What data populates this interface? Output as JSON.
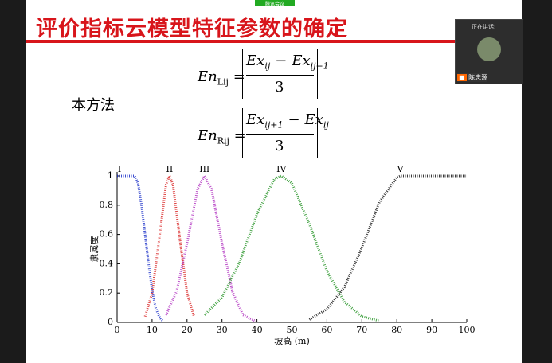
{
  "meeting": {
    "app_label": "腾讯会议",
    "speaking_label": "正在讲话:",
    "speaker": "陈忠源"
  },
  "slide": {
    "title": "评价指标云模型特征参数的确定",
    "method_label": "本方法",
    "formulas": [
      {
        "lhs": "En",
        "lhs_sub": "Lij",
        "num_a": "Ex",
        "num_a_sub": "ij",
        "op": "−",
        "num_b": "Ex",
        "num_b_sub": "ij−1",
        "den": "3"
      },
      {
        "lhs": "En",
        "lhs_sub": "Rij",
        "num_a": "Ex",
        "num_a_sub": "ij+1",
        "op": "−",
        "num_b": "Ex",
        "num_b_sub": "ij",
        "den": "3"
      }
    ]
  },
  "chart_data": {
    "type": "line",
    "xlabel": "坡高 (m)",
    "ylabel": "隶属度",
    "xlim": [
      0,
      100
    ],
    "xticks": [
      0,
      10,
      20,
      30,
      40,
      50,
      60,
      70,
      80,
      90,
      100
    ],
    "ylim": [
      0,
      1
    ],
    "yticks": [
      0,
      0.2,
      0.4,
      0.6,
      0.8,
      1
    ],
    "series": [
      {
        "name": "I",
        "color": "#1a2fc8",
        "x": [
          0,
          5,
          6,
          7,
          8,
          9,
          10,
          11,
          12,
          13
        ],
        "values": [
          1,
          1,
          0.95,
          0.8,
          0.6,
          0.4,
          0.22,
          0.1,
          0.04,
          0.01
        ]
      },
      {
        "name": "II",
        "color": "#d82020",
        "x": [
          8,
          10,
          12,
          14,
          15,
          16,
          18,
          20,
          22
        ],
        "values": [
          0.04,
          0.2,
          0.56,
          0.94,
          1,
          0.94,
          0.56,
          0.2,
          0.04
        ]
      },
      {
        "name": "III",
        "color": "#b030c0",
        "x": [
          14,
          17,
          20,
          23,
          25,
          27,
          30,
          33,
          36,
          40
        ],
        "values": [
          0.05,
          0.21,
          0.54,
          0.91,
          1,
          0.91,
          0.54,
          0.21,
          0.05,
          0.004
        ]
      },
      {
        "name": "IV",
        "color": "#209020",
        "x": [
          25,
          30,
          35,
          40,
          45,
          47,
          50,
          55,
          60,
          65,
          70,
          75
        ],
        "values": [
          0.05,
          0.17,
          0.41,
          0.74,
          0.98,
          1,
          0.95,
          0.67,
          0.35,
          0.14,
          0.04,
          0.01
        ]
      },
      {
        "name": "V",
        "color": "#111111",
        "x": [
          55,
          60,
          65,
          70,
          75,
          80,
          81,
          90,
          100
        ],
        "values": [
          0.02,
          0.09,
          0.24,
          0.51,
          0.82,
          0.99,
          1,
          1,
          1
        ]
      }
    ]
  }
}
